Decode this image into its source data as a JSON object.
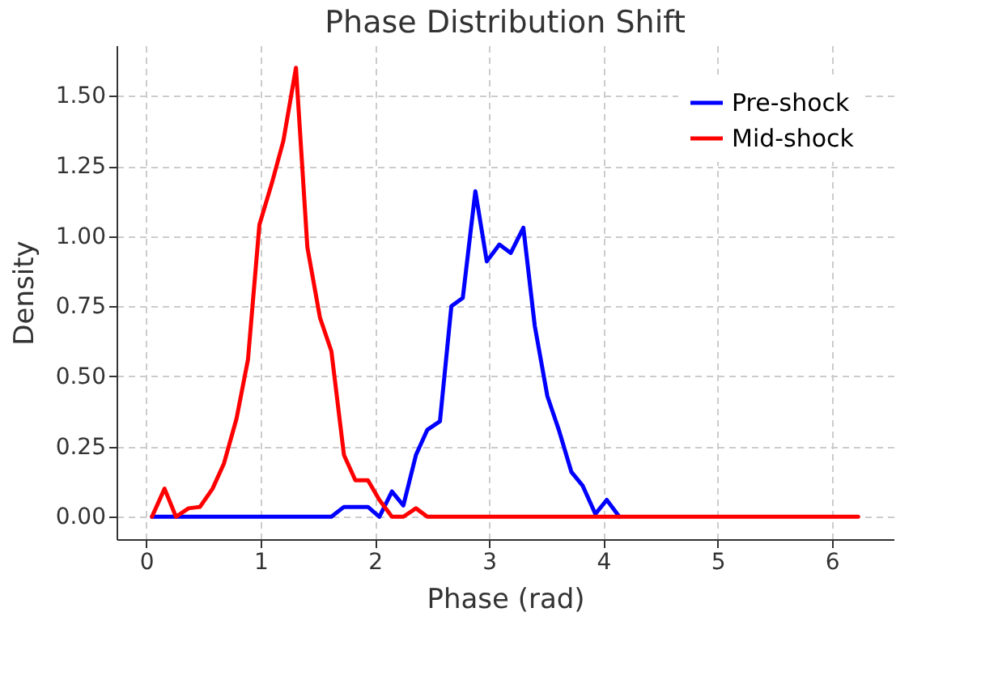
{
  "chart_data": {
    "type": "line",
    "title": "Phase Distribution Shift",
    "xlabel": "Phase (rad)",
    "ylabel": "Density",
    "x": [
      0.05,
      0.16,
      0.26,
      0.37,
      0.47,
      0.58,
      0.68,
      0.79,
      0.89,
      0.99,
      1.1,
      1.2,
      1.31,
      1.41,
      1.52,
      1.62,
      1.73,
      1.83,
      1.94,
      2.04,
      2.15,
      2.25,
      2.36,
      2.46,
      2.57,
      2.67,
      2.77,
      2.88,
      2.98,
      3.09,
      3.19,
      3.3,
      3.4,
      3.51,
      3.61,
      3.72,
      3.82,
      3.93,
      4.03,
      4.14,
      4.24,
      4.35,
      4.45,
      4.56,
      4.66,
      4.76,
      4.87,
      4.97,
      5.08,
      5.18,
      5.29,
      5.39,
      5.5,
      5.6,
      5.71,
      5.81,
      5.92,
      6.02,
      6.13,
      6.23
    ],
    "series": [
      {
        "name": "Pre-shock",
        "color": "#0000ff",
        "values": [
          0,
          0,
          0,
          0,
          0,
          0,
          0,
          0,
          0,
          0,
          0,
          0,
          0,
          0,
          0,
          0,
          0.035,
          0.035,
          0.035,
          0,
          0.09,
          0.04,
          0.22,
          0.31,
          0.34,
          0.75,
          0.78,
          1.16,
          0.91,
          0.97,
          0.94,
          1.03,
          0.68,
          0.43,
          0.31,
          0.16,
          0.11,
          0.01,
          0.06,
          0,
          null,
          null,
          null,
          null,
          null,
          null,
          null,
          null,
          null,
          null,
          null,
          null,
          null,
          null,
          null,
          null,
          null,
          null,
          null,
          null
        ]
      },
      {
        "name": "Mid-shock",
        "color": "#ff0000",
        "values": [
          0,
          0.1,
          0,
          0.03,
          0.035,
          0.1,
          0.19,
          0.35,
          0.56,
          1.04,
          1.19,
          1.34,
          1.6,
          0.96,
          0.71,
          0.59,
          0.22,
          0.13,
          0.13,
          0.06,
          0,
          0,
          0.03,
          0,
          0,
          0,
          0,
          0,
          0,
          0,
          0,
          0,
          0,
          0,
          0,
          0,
          0,
          0,
          0,
          0,
          0,
          0,
          0,
          0,
          0,
          0,
          0,
          0,
          0,
          0,
          0,
          0,
          0,
          0,
          0,
          0,
          0,
          0,
          0,
          0
        ]
      }
    ],
    "xlim": [
      -0.26,
      6.54
    ],
    "ylim": [
      -0.08,
      1.68
    ],
    "xticks": [
      0,
      1,
      2,
      3,
      4,
      5,
      6
    ],
    "yticks": [
      {
        "value": 0,
        "label": "0.00"
      },
      {
        "value": 0.25,
        "label": "0.25"
      },
      {
        "value": 0.5,
        "label": "0.50"
      },
      {
        "value": 0.75,
        "label": "0.75"
      },
      {
        "value": 1,
        "label": "1.00"
      },
      {
        "value": 1.25,
        "label": "1.25"
      },
      {
        "value": 1.5,
        "label": "1.50"
      }
    ],
    "grid": true,
    "legend": "top right",
    "line_style": "solid"
  }
}
